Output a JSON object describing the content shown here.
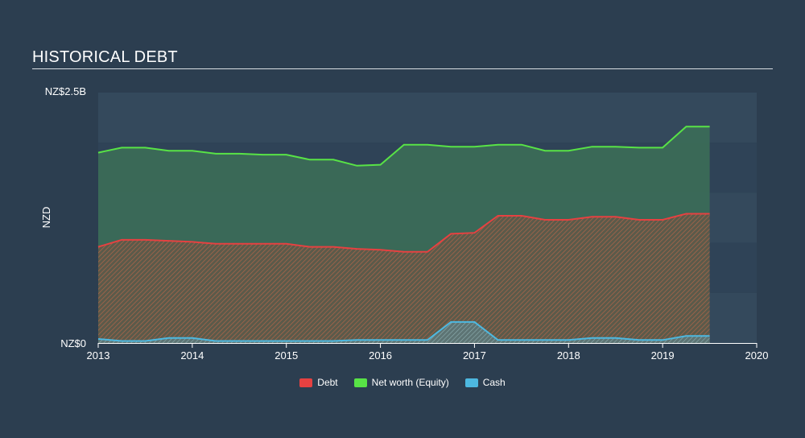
{
  "chart_data": {
    "type": "area",
    "title": "HISTORICAL DEBT",
    "ylabel": "NZD",
    "y_tick_labels": [
      "NZ$0",
      "NZ$2.5B"
    ],
    "ylim": [
      0,
      2.5
    ],
    "xlim": [
      2013,
      2020
    ],
    "x_ticks": [
      2013,
      2014,
      2015,
      2016,
      2017,
      2018,
      2019,
      2020
    ],
    "grid": true,
    "legend_position": "bottom",
    "x": [
      2013.0,
      2013.25,
      2013.5,
      2013.75,
      2014.0,
      2014.25,
      2014.5,
      2014.75,
      2015.0,
      2015.25,
      2015.5,
      2015.75,
      2016.0,
      2016.25,
      2016.5,
      2016.75,
      2017.0,
      2017.25,
      2017.5,
      2017.75,
      2018.0,
      2018.25,
      2018.5,
      2018.75,
      2019.0,
      2019.25,
      2019.5
    ],
    "series": [
      {
        "name": "Debt",
        "color": "#e64141",
        "values": [
          0.96,
          1.03,
          1.03,
          1.02,
          1.01,
          0.99,
          0.99,
          0.99,
          0.99,
          0.96,
          0.96,
          0.94,
          0.93,
          0.91,
          0.91,
          1.09,
          1.1,
          1.27,
          1.27,
          1.23,
          1.23,
          1.26,
          1.26,
          1.23,
          1.23,
          1.29,
          1.29
        ]
      },
      {
        "name": "Net worth (Equity)",
        "color": "#58e346",
        "values": [
          1.9,
          1.95,
          1.95,
          1.92,
          1.92,
          1.89,
          1.89,
          1.88,
          1.88,
          1.83,
          1.83,
          1.77,
          1.78,
          1.98,
          1.98,
          1.96,
          1.96,
          1.98,
          1.98,
          1.92,
          1.92,
          1.96,
          1.96,
          1.95,
          1.95,
          2.16,
          2.16
        ]
      },
      {
        "name": "Cash",
        "color": "#4db8e0",
        "values": [
          0.04,
          0.02,
          0.02,
          0.05,
          0.05,
          0.02,
          0.02,
          0.02,
          0.02,
          0.02,
          0.02,
          0.03,
          0.03,
          0.03,
          0.03,
          0.21,
          0.21,
          0.03,
          0.03,
          0.03,
          0.03,
          0.05,
          0.05,
          0.03,
          0.03,
          0.07,
          0.07
        ]
      }
    ]
  }
}
